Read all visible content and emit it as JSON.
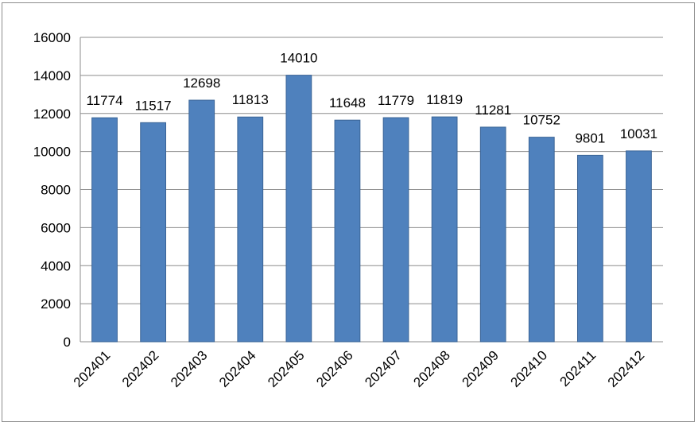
{
  "chart_data": {
    "type": "bar",
    "categories": [
      "202401",
      "202402",
      "202403",
      "202404",
      "202405",
      "202406",
      "202407",
      "202408",
      "202409",
      "202410",
      "202411",
      "202412"
    ],
    "values": [
      11774,
      11517,
      12698,
      11813,
      14010,
      11648,
      11779,
      11819,
      11281,
      10752,
      9801,
      10031
    ],
    "data_labels": [
      "11774",
      "11517",
      "12698",
      "11813",
      "14010",
      "11648",
      "11779",
      "11819",
      "11281",
      "10752",
      "9801",
      "10031"
    ],
    "y_ticks": [
      "0",
      "2000",
      "4000",
      "6000",
      "8000",
      "10000",
      "12000",
      "14000",
      "16000"
    ],
    "ylim": [
      0,
      16000
    ],
    "grid": true,
    "legend": "none",
    "colors": {
      "bar": "#4f81bd",
      "bar_edge": "#3a6496",
      "grid": "#8c8c8c",
      "axis": "#8c8c8c"
    }
  }
}
